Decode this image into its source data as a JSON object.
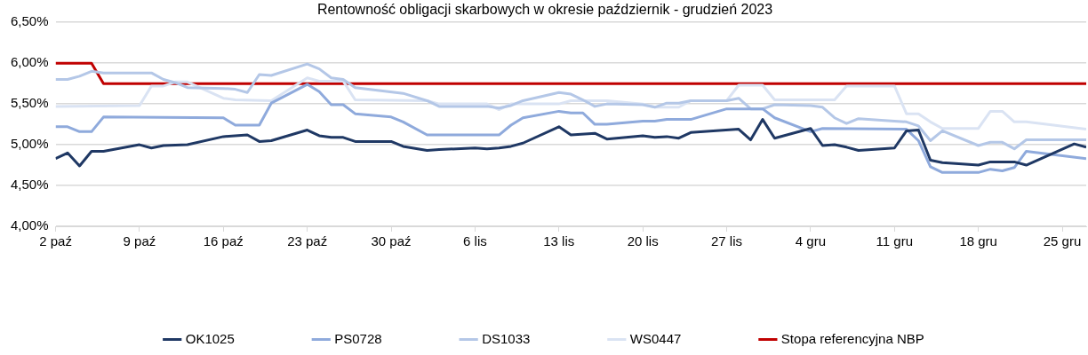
{
  "chart_data": {
    "type": "line",
    "title": "Rentowność obligacji skarbowych w okresie październik - grudzień 2023",
    "xlim": [
      "2023-10-02",
      "2023-12-27"
    ],
    "xticks": [
      {
        "value": "2023-10-02",
        "label": "2 paź"
      },
      {
        "value": "2023-10-09",
        "label": "9 paź"
      },
      {
        "value": "2023-10-16",
        "label": "16 paź"
      },
      {
        "value": "2023-10-23",
        "label": "23 paź"
      },
      {
        "value": "2023-10-30",
        "label": "30 paź"
      },
      {
        "value": "2023-11-06",
        "label": "6 lis"
      },
      {
        "value": "2023-11-13",
        "label": "13 lis"
      },
      {
        "value": "2023-11-20",
        "label": "20 lis"
      },
      {
        "value": "2023-11-27",
        "label": "27 lis"
      },
      {
        "value": "2023-12-04",
        "label": "4 gru"
      },
      {
        "value": "2023-12-11",
        "label": "11 gru"
      },
      {
        "value": "2023-12-18",
        "label": "18 gru"
      },
      {
        "value": "2023-12-25",
        "label": "25 gru"
      }
    ],
    "ylim": [
      4.0,
      6.5
    ],
    "yticks": [
      {
        "value": 4.0,
        "label": "4,00%"
      },
      {
        "value": 4.5,
        "label": "4,50%"
      },
      {
        "value": 5.0,
        "label": "5,00%"
      },
      {
        "value": 5.5,
        "label": "5,50%"
      },
      {
        "value": 6.0,
        "label": "6,00%"
      },
      {
        "value": 6.5,
        "label": "6,50%"
      }
    ],
    "grid": "y",
    "legend": "bottom",
    "marker": "none",
    "line_style": "solid",
    "series": [
      {
        "name": "OK1025",
        "color": "#1f3864",
        "x": [
          "2023-10-02",
          "2023-10-03",
          "2023-10-04",
          "2023-10-05",
          "2023-10-06",
          "2023-10-09",
          "2023-10-10",
          "2023-10-11",
          "2023-10-13",
          "2023-10-16",
          "2023-10-18",
          "2023-10-19",
          "2023-10-20",
          "2023-10-23",
          "2023-10-24",
          "2023-10-25",
          "2023-10-26",
          "2023-10-27",
          "2023-10-30",
          "2023-10-31",
          "2023-11-02",
          "2023-11-03",
          "2023-11-06",
          "2023-11-07",
          "2023-11-08",
          "2023-11-09",
          "2023-11-10",
          "2023-11-13",
          "2023-11-14",
          "2023-11-16",
          "2023-11-17",
          "2023-11-20",
          "2023-11-21",
          "2023-11-22",
          "2023-11-23",
          "2023-11-24",
          "2023-11-28",
          "2023-11-29",
          "2023-11-30",
          "2023-12-01",
          "2023-12-04",
          "2023-12-05",
          "2023-12-06",
          "2023-12-07",
          "2023-12-08",
          "2023-12-11",
          "2023-12-12",
          "2023-12-13",
          "2023-12-14",
          "2023-12-15",
          "2023-12-18",
          "2023-12-19",
          "2023-12-21",
          "2023-12-22",
          "2023-12-26",
          "2023-12-27"
        ],
        "values": [
          4.83,
          4.9,
          4.74,
          4.92,
          4.92,
          5.0,
          4.96,
          4.99,
          5.0,
          5.1,
          5.12,
          5.04,
          5.05,
          5.18,
          5.11,
          5.09,
          5.09,
          5.04,
          5.04,
          4.98,
          4.93,
          4.94,
          4.96,
          4.95,
          4.96,
          4.98,
          5.02,
          5.22,
          5.12,
          5.14,
          5.07,
          5.11,
          5.09,
          5.1,
          5.08,
          5.15,
          5.19,
          5.06,
          5.31,
          5.08,
          5.2,
          4.99,
          5.0,
          4.97,
          4.93,
          4.96,
          5.17,
          5.18,
          4.81,
          4.78,
          4.75,
          4.79,
          4.79,
          4.75,
          5.01,
          4.97
        ]
      },
      {
        "name": "PS0728",
        "color": "#8faadc",
        "x": [
          "2023-10-02",
          "2023-10-03",
          "2023-10-04",
          "2023-10-05",
          "2023-10-06",
          "2023-10-16",
          "2023-10-17",
          "2023-10-19",
          "2023-10-20",
          "2023-10-23",
          "2023-10-24",
          "2023-10-25",
          "2023-10-26",
          "2023-10-27",
          "2023-10-30",
          "2023-10-31",
          "2023-11-02",
          "2023-11-08",
          "2023-11-09",
          "2023-11-10",
          "2023-11-13",
          "2023-11-14",
          "2023-11-15",
          "2023-11-16",
          "2023-11-17",
          "2023-11-20",
          "2023-11-21",
          "2023-11-22",
          "2023-11-24",
          "2023-11-27",
          "2023-11-30",
          "2023-12-01",
          "2023-12-04",
          "2023-12-05",
          "2023-12-12",
          "2023-12-13",
          "2023-12-14",
          "2023-12-15",
          "2023-12-18",
          "2023-12-19",
          "2023-12-20",
          "2023-12-21",
          "2023-12-22",
          "2023-12-27"
        ],
        "values": [
          5.22,
          5.22,
          5.16,
          5.16,
          5.34,
          5.33,
          5.24,
          5.24,
          5.51,
          5.74,
          5.65,
          5.49,
          5.49,
          5.38,
          5.34,
          5.28,
          5.12,
          5.12,
          5.24,
          5.33,
          5.41,
          5.39,
          5.39,
          5.25,
          5.25,
          5.29,
          5.29,
          5.31,
          5.31,
          5.44,
          5.44,
          5.33,
          5.16,
          5.2,
          5.19,
          5.05,
          4.73,
          4.66,
          4.66,
          4.7,
          4.68,
          4.72,
          4.92,
          4.83
        ]
      },
      {
        "name": "DS1033",
        "color": "#b4c7e7",
        "x": [
          "2023-10-02",
          "2023-10-03",
          "2023-10-04",
          "2023-10-05",
          "2023-10-06",
          "2023-10-10",
          "2023-10-11",
          "2023-10-12",
          "2023-10-13",
          "2023-10-16",
          "2023-10-17",
          "2023-10-18",
          "2023-10-19",
          "2023-10-20",
          "2023-10-23",
          "2023-10-24",
          "2023-10-25",
          "2023-10-26",
          "2023-10-27",
          "2023-10-31",
          "2023-11-02",
          "2023-11-03",
          "2023-11-07",
          "2023-11-08",
          "2023-11-09",
          "2023-11-10",
          "2023-11-13",
          "2023-11-14",
          "2023-11-15",
          "2023-11-16",
          "2023-11-17",
          "2023-11-20",
          "2023-11-21",
          "2023-11-22",
          "2023-11-23",
          "2023-11-24",
          "2023-11-27",
          "2023-11-28",
          "2023-11-29",
          "2023-11-30",
          "2023-12-01",
          "2023-12-04",
          "2023-12-05",
          "2023-12-06",
          "2023-12-07",
          "2023-12-08",
          "2023-12-11",
          "2023-12-12",
          "2023-12-13",
          "2023-12-14",
          "2023-12-15",
          "2023-12-18",
          "2023-12-19",
          "2023-12-20",
          "2023-12-21",
          "2023-12-22",
          "2023-12-27"
        ],
        "values": [
          5.8,
          5.8,
          5.84,
          5.9,
          5.88,
          5.88,
          5.8,
          5.76,
          5.7,
          5.69,
          5.68,
          5.64,
          5.86,
          5.85,
          5.99,
          5.93,
          5.82,
          5.8,
          5.7,
          5.63,
          5.54,
          5.47,
          5.47,
          5.45,
          5.48,
          5.54,
          5.64,
          5.62,
          5.55,
          5.47,
          5.5,
          5.49,
          5.46,
          5.51,
          5.51,
          5.54,
          5.54,
          5.57,
          5.44,
          5.44,
          5.49,
          5.48,
          5.46,
          5.33,
          5.26,
          5.32,
          5.29,
          5.28,
          5.23,
          5.05,
          5.17,
          4.99,
          5.03,
          5.03,
          4.95,
          5.06,
          5.06
        ]
      },
      {
        "name": "WS0447",
        "color": "#dae3f3",
        "x": [
          "2023-10-02",
          "2023-10-09",
          "2023-10-10",
          "2023-10-11",
          "2023-10-12",
          "2023-10-13",
          "2023-10-16",
          "2023-10-17",
          "2023-10-20",
          "2023-10-23",
          "2023-10-24",
          "2023-10-26",
          "2023-10-27",
          "2023-11-02",
          "2023-11-03",
          "2023-11-07",
          "2023-11-08",
          "2023-11-09",
          "2023-11-13",
          "2023-11-14",
          "2023-11-17",
          "2023-11-20",
          "2023-11-21",
          "2023-11-23",
          "2023-11-24",
          "2023-11-27",
          "2023-11-28",
          "2023-11-30",
          "2023-12-01",
          "2023-12-06",
          "2023-12-07",
          "2023-12-11",
          "2023-12-12",
          "2023-12-13",
          "2023-12-14",
          "2023-12-15",
          "2023-12-18",
          "2023-12-19",
          "2023-12-20",
          "2023-12-21",
          "2023-12-22",
          "2023-12-27"
        ],
        "values": [
          5.47,
          5.48,
          5.72,
          5.72,
          5.77,
          5.77,
          5.57,
          5.55,
          5.54,
          5.82,
          5.78,
          5.78,
          5.55,
          5.54,
          5.5,
          5.5,
          5.43,
          5.5,
          5.5,
          5.54,
          5.54,
          5.5,
          5.46,
          5.46,
          5.54,
          5.54,
          5.73,
          5.73,
          5.55,
          5.55,
          5.72,
          5.72,
          5.38,
          5.38,
          5.28,
          5.2,
          5.2,
          5.41,
          5.41,
          5.28,
          5.28,
          5.19
        ]
      },
      {
        "name": "Stopa referencyjna NBP",
        "color": "#c00000",
        "x": [
          "2023-10-02",
          "2023-10-05",
          "2023-10-06",
          "2023-12-27"
        ],
        "values": [
          6.0,
          6.0,
          5.75,
          5.75
        ]
      }
    ]
  }
}
